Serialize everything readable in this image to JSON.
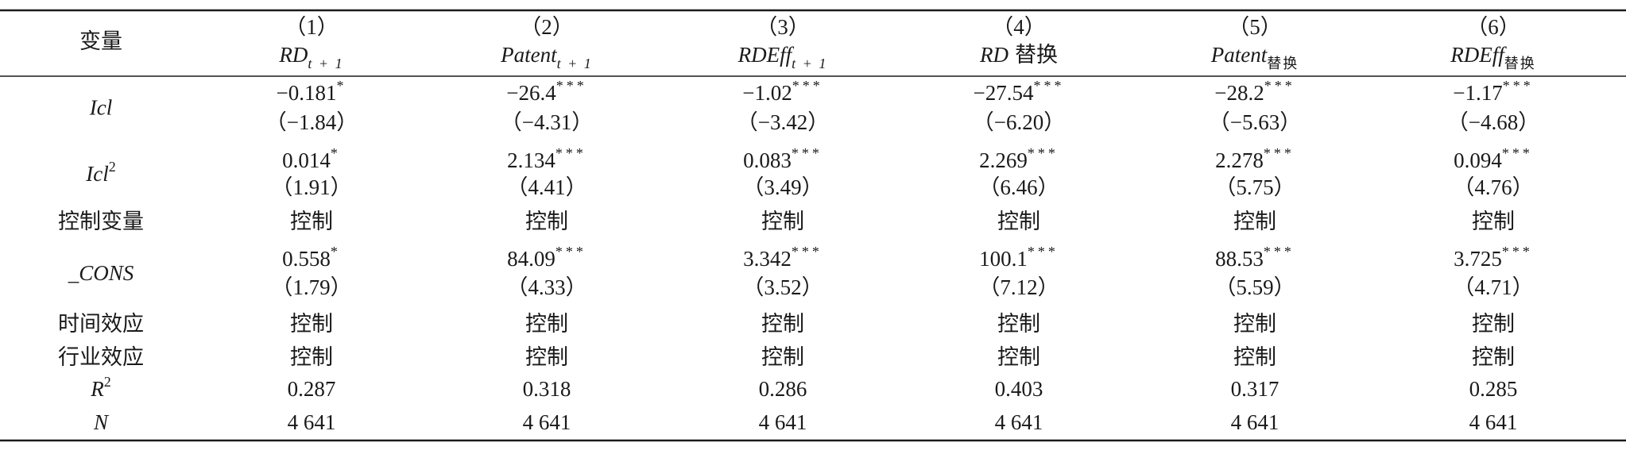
{
  "table": {
    "header": {
      "label": "变量",
      "columns": [
        {
          "number": "（1）",
          "name": "RD",
          "sub": "t + 1"
        },
        {
          "number": "（2）",
          "name": "Patent",
          "sub": "t + 1"
        },
        {
          "number": "（3）",
          "name": "RDEff",
          "sub": "t + 1"
        },
        {
          "number": "（4）",
          "name": "RD",
          "suffix": "替换"
        },
        {
          "number": "（5）",
          "name": "Patent",
          "sub": "替换"
        },
        {
          "number": "（6）",
          "name": "RDEff",
          "sub": "替换"
        }
      ]
    },
    "rows": [
      {
        "label": "Icl",
        "cells": [
          {
            "coef": "−0.181",
            "stars": "*",
            "t": "（−1.84）"
          },
          {
            "coef": "−26.4",
            "stars": "***",
            "t": "（−4.31）"
          },
          {
            "coef": "−1.02",
            "stars": "***",
            "t": "（−3.42）"
          },
          {
            "coef": "−27.54",
            "stars": "***",
            "t": "（−6.20）"
          },
          {
            "coef": "−28.2",
            "stars": "***",
            "t": "（−5.63）"
          },
          {
            "coef": "−1.17",
            "stars": "***",
            "t": "（−4.68）"
          }
        ]
      },
      {
        "label": "Icl",
        "sup": "2",
        "cells": [
          {
            "coef": "0.014",
            "stars": "*",
            "t": "（1.91）"
          },
          {
            "coef": "2.134",
            "stars": "***",
            "t": "（4.41）"
          },
          {
            "coef": "0.083",
            "stars": "***",
            "t": "（3.49）"
          },
          {
            "coef": "2.269",
            "stars": "***",
            "t": "（6.46）"
          },
          {
            "coef": "2.278",
            "stars": "***",
            "t": "（5.75）"
          },
          {
            "coef": "0.094",
            "stars": "***",
            "t": "（4.76）"
          }
        ]
      },
      {
        "label": "控制变量",
        "cells": [
          "控制",
          "控制",
          "控制",
          "控制",
          "控制",
          "控制"
        ]
      },
      {
        "label": "_CONS",
        "cells": [
          {
            "coef": "0.558",
            "stars": "*",
            "t": "（1.79）"
          },
          {
            "coef": "84.09",
            "stars": "***",
            "t": "（4.33）"
          },
          {
            "coef": "3.342",
            "stars": "***",
            "t": "（3.52）"
          },
          {
            "coef": "100.1",
            "stars": "***",
            "t": "（7.12）"
          },
          {
            "coef": "88.53",
            "stars": "***",
            "t": "（5.59）"
          },
          {
            "coef": "3.725",
            "stars": "***",
            "t": "（4.71）"
          }
        ]
      },
      {
        "label": "时间效应",
        "cells": [
          "控制",
          "控制",
          "控制",
          "控制",
          "控制",
          "控制"
        ]
      },
      {
        "label": "行业效应",
        "cells": [
          "控制",
          "控制",
          "控制",
          "控制",
          "控制",
          "控制"
        ]
      },
      {
        "label": "R",
        "sup": "2",
        "cells": [
          "0.287",
          "0.318",
          "0.286",
          "0.403",
          "0.317",
          "0.285"
        ]
      },
      {
        "label": "N",
        "cells": [
          "4 641",
          "4 641",
          "4 641",
          "4 641",
          "4 641",
          "4 641"
        ]
      }
    ]
  }
}
